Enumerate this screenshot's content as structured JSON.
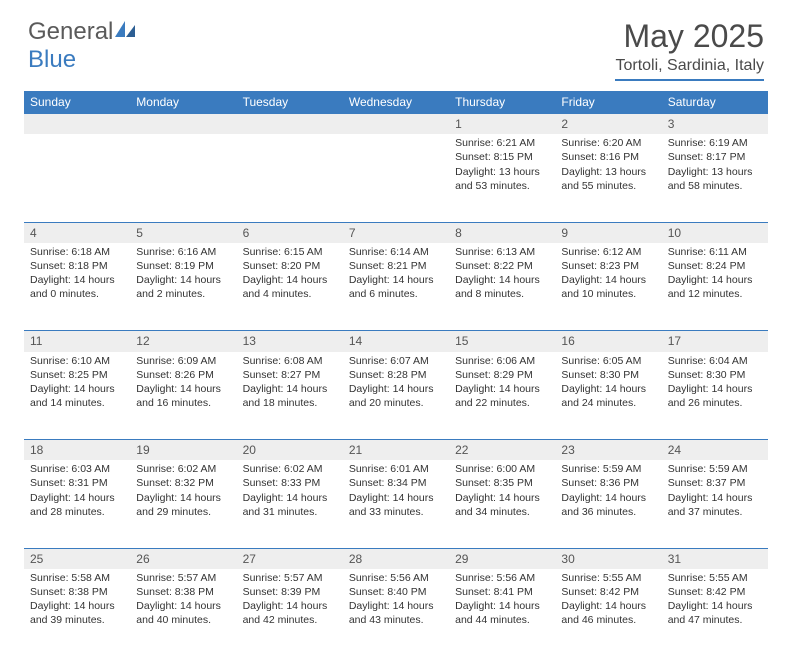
{
  "logo": {
    "text1": "General",
    "text2": "Blue"
  },
  "title": {
    "month": "May 2025",
    "location": "Tortoli, Sardinia, Italy"
  },
  "colors": {
    "header_bg": "#3a7bbf",
    "header_text": "#ffffff",
    "daynum_bg": "#eeeeee",
    "border": "#3a7bbf",
    "body_text": "#333333",
    "logo_gray": "#5a5a5a",
    "logo_blue": "#3a7bbf"
  },
  "weekdays": [
    "Sunday",
    "Monday",
    "Tuesday",
    "Wednesday",
    "Thursday",
    "Friday",
    "Saturday"
  ],
  "weeks": [
    {
      "nums": [
        "",
        "",
        "",
        "",
        "1",
        "2",
        "3"
      ],
      "cells": [
        [],
        [],
        [],
        [],
        [
          "Sunrise: 6:21 AM",
          "Sunset: 8:15 PM",
          "Daylight: 13 hours",
          "and 53 minutes."
        ],
        [
          "Sunrise: 6:20 AM",
          "Sunset: 8:16 PM",
          "Daylight: 13 hours",
          "and 55 minutes."
        ],
        [
          "Sunrise: 6:19 AM",
          "Sunset: 8:17 PM",
          "Daylight: 13 hours",
          "and 58 minutes."
        ]
      ]
    },
    {
      "nums": [
        "4",
        "5",
        "6",
        "7",
        "8",
        "9",
        "10"
      ],
      "cells": [
        [
          "Sunrise: 6:18 AM",
          "Sunset: 8:18 PM",
          "Daylight: 14 hours",
          "and 0 minutes."
        ],
        [
          "Sunrise: 6:16 AM",
          "Sunset: 8:19 PM",
          "Daylight: 14 hours",
          "and 2 minutes."
        ],
        [
          "Sunrise: 6:15 AM",
          "Sunset: 8:20 PM",
          "Daylight: 14 hours",
          "and 4 minutes."
        ],
        [
          "Sunrise: 6:14 AM",
          "Sunset: 8:21 PM",
          "Daylight: 14 hours",
          "and 6 minutes."
        ],
        [
          "Sunrise: 6:13 AM",
          "Sunset: 8:22 PM",
          "Daylight: 14 hours",
          "and 8 minutes."
        ],
        [
          "Sunrise: 6:12 AM",
          "Sunset: 8:23 PM",
          "Daylight: 14 hours",
          "and 10 minutes."
        ],
        [
          "Sunrise: 6:11 AM",
          "Sunset: 8:24 PM",
          "Daylight: 14 hours",
          "and 12 minutes."
        ]
      ]
    },
    {
      "nums": [
        "11",
        "12",
        "13",
        "14",
        "15",
        "16",
        "17"
      ],
      "cells": [
        [
          "Sunrise: 6:10 AM",
          "Sunset: 8:25 PM",
          "Daylight: 14 hours",
          "and 14 minutes."
        ],
        [
          "Sunrise: 6:09 AM",
          "Sunset: 8:26 PM",
          "Daylight: 14 hours",
          "and 16 minutes."
        ],
        [
          "Sunrise: 6:08 AM",
          "Sunset: 8:27 PM",
          "Daylight: 14 hours",
          "and 18 minutes."
        ],
        [
          "Sunrise: 6:07 AM",
          "Sunset: 8:28 PM",
          "Daylight: 14 hours",
          "and 20 minutes."
        ],
        [
          "Sunrise: 6:06 AM",
          "Sunset: 8:29 PM",
          "Daylight: 14 hours",
          "and 22 minutes."
        ],
        [
          "Sunrise: 6:05 AM",
          "Sunset: 8:30 PM",
          "Daylight: 14 hours",
          "and 24 minutes."
        ],
        [
          "Sunrise: 6:04 AM",
          "Sunset: 8:30 PM",
          "Daylight: 14 hours",
          "and 26 minutes."
        ]
      ]
    },
    {
      "nums": [
        "18",
        "19",
        "20",
        "21",
        "22",
        "23",
        "24"
      ],
      "cells": [
        [
          "Sunrise: 6:03 AM",
          "Sunset: 8:31 PM",
          "Daylight: 14 hours",
          "and 28 minutes."
        ],
        [
          "Sunrise: 6:02 AM",
          "Sunset: 8:32 PM",
          "Daylight: 14 hours",
          "and 29 minutes."
        ],
        [
          "Sunrise: 6:02 AM",
          "Sunset: 8:33 PM",
          "Daylight: 14 hours",
          "and 31 minutes."
        ],
        [
          "Sunrise: 6:01 AM",
          "Sunset: 8:34 PM",
          "Daylight: 14 hours",
          "and 33 minutes."
        ],
        [
          "Sunrise: 6:00 AM",
          "Sunset: 8:35 PM",
          "Daylight: 14 hours",
          "and 34 minutes."
        ],
        [
          "Sunrise: 5:59 AM",
          "Sunset: 8:36 PM",
          "Daylight: 14 hours",
          "and 36 minutes."
        ],
        [
          "Sunrise: 5:59 AM",
          "Sunset: 8:37 PM",
          "Daylight: 14 hours",
          "and 37 minutes."
        ]
      ]
    },
    {
      "nums": [
        "25",
        "26",
        "27",
        "28",
        "29",
        "30",
        "31"
      ],
      "cells": [
        [
          "Sunrise: 5:58 AM",
          "Sunset: 8:38 PM",
          "Daylight: 14 hours",
          "and 39 minutes."
        ],
        [
          "Sunrise: 5:57 AM",
          "Sunset: 8:38 PM",
          "Daylight: 14 hours",
          "and 40 minutes."
        ],
        [
          "Sunrise: 5:57 AM",
          "Sunset: 8:39 PM",
          "Daylight: 14 hours",
          "and 42 minutes."
        ],
        [
          "Sunrise: 5:56 AM",
          "Sunset: 8:40 PM",
          "Daylight: 14 hours",
          "and 43 minutes."
        ],
        [
          "Sunrise: 5:56 AM",
          "Sunset: 8:41 PM",
          "Daylight: 14 hours",
          "and 44 minutes."
        ],
        [
          "Sunrise: 5:55 AM",
          "Sunset: 8:42 PM",
          "Daylight: 14 hours",
          "and 46 minutes."
        ],
        [
          "Sunrise: 5:55 AM",
          "Sunset: 8:42 PM",
          "Daylight: 14 hours",
          "and 47 minutes."
        ]
      ]
    }
  ]
}
